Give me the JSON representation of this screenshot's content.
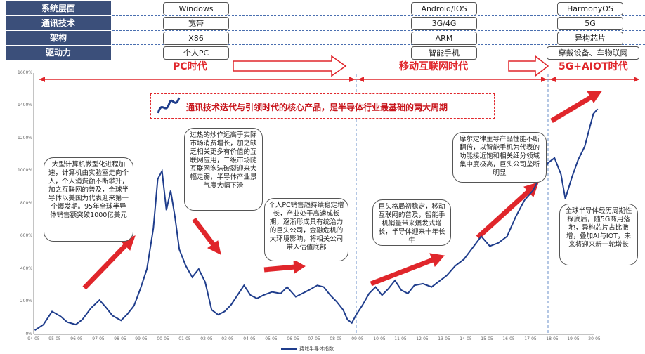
{
  "table": {
    "rows": [
      {
        "label": "系统层面",
        "values": [
          "Windows",
          "Android/IOS",
          "HarmonyOS"
        ]
      },
      {
        "label": "通讯技术",
        "values": [
          "宽带",
          "3G/4G",
          "5G"
        ]
      },
      {
        "label": "架构",
        "values": [
          "X86",
          "ARM",
          "异构芯片"
        ]
      },
      {
        "label": "驱动力",
        "values": [
          "个人PC",
          "智能手机",
          "穿戴设备、车物联网"
        ]
      }
    ]
  },
  "eras": [
    "PC时代",
    "移动互联网时代",
    "5G+AIOT时代"
  ],
  "banner": "通讯技术迭代与引领时代的核心产品，是半导体行业最基础的两大周期",
  "annotations": [
    "大型计算机微型化进程加速，计算机由实验室走向个人，个人消费额不断攀升，加之互联网的普及，全球半导体以美国为代表迎来第一个爆发期。95年全球半导体销售额突破1000亿美元",
    "过热的炒作远高于实际市场消费增长，加之缺乏相关更多有价值的互联网应用，二级市场随互联网泡沫破裂迎来大幅走弱，半导体产业景气度大幅下滑",
    "个人PC销售趋持续稳定增长，产业处于高速成长期，逐渐形成具有统治力的巨头公司，金融危机的大环境影响，将相关公司带入估值底部",
    "巨头格局初稳定，移动互联网的普及，智能手机销量带来爆发式增长，半导体迎来十年长牛",
    "摩尔定律主导产品性能不断翻倍，以智能手机为代表的功能接近饱和相关细分领域集中度极高，巨头公司垄断明显",
    "全球半导体经历周期性探底后，随5G商用落地，异构芯片占比激增，叠加AI与IOT，未来将迎来新一轮增长"
  ],
  "chart_data": {
    "type": "line",
    "title": "",
    "xlabel": "",
    "ylabel": "",
    "ylim": [
      0,
      1600
    ],
    "yticks": [
      "0%",
      "200%",
      "400%",
      "600%",
      "800%",
      "1000%",
      "1200%",
      "1400%",
      "1600%"
    ],
    "xticks": [
      "94-05",
      "95-05",
      "96-05",
      "97-05",
      "98-05",
      "99-05",
      "00-05",
      "01-05",
      "02-05",
      "03-05",
      "04-05",
      "05-05",
      "06-05",
      "07-05",
      "08-05",
      "09-05",
      "10-05",
      "11-05",
      "12-05",
      "13-05",
      "14-05",
      "15-05",
      "16-05",
      "17-05",
      "18-05",
      "19-05",
      "20-05"
    ],
    "legend": "费城半导体指数",
    "legend_position": "bottom",
    "grid": false,
    "series": [
      {
        "name": "费城半导体指数",
        "color": "#1f3d8c",
        "x": [
          1994.4,
          1994.8,
          1995.2,
          1995.6,
          1995.9,
          1996.3,
          1996.6,
          1997.0,
          1997.4,
          1997.7,
          1998.0,
          1998.4,
          1998.7,
          1999.0,
          1999.3,
          1999.6,
          1999.9,
          2000.1,
          2000.3,
          2000.5,
          2000.7,
          2000.9,
          2001.1,
          2001.4,
          2001.7,
          2002.0,
          2002.3,
          2002.6,
          2002.9,
          2003.2,
          2003.5,
          2003.8,
          2004.1,
          2004.4,
          2004.7,
          2005.0,
          2005.4,
          2005.8,
          2006.1,
          2006.5,
          2006.8,
          2007.1,
          2007.5,
          2007.8,
          2008.1,
          2008.4,
          2008.7,
          2008.9,
          2009.1,
          2009.3,
          2009.6,
          2009.9,
          2010.2,
          2010.5,
          2010.8,
          2011.1,
          2011.4,
          2011.7,
          2012.0,
          2012.4,
          2012.8,
          2013.1,
          2013.5,
          2013.9,
          2014.3,
          2014.7,
          2015.1,
          2015.5,
          2015.9,
          2016.3,
          2016.7,
          2017.1,
          2017.5,
          2017.9,
          2018.2,
          2018.5,
          2018.8,
          2019.0,
          2019.3,
          2019.6,
          2019.9,
          2020.1,
          2020.3,
          2020.5
        ],
        "values": [
          25,
          60,
          140,
          110,
          75,
          60,
          90,
          160,
          210,
          165,
          115,
          85,
          125,
          175,
          280,
          400,
          650,
          950,
          1000,
          760,
          880,
          720,
          520,
          420,
          350,
          400,
          320,
          150,
          120,
          140,
          180,
          240,
          300,
          240,
          220,
          240,
          260,
          250,
          290,
          230,
          250,
          270,
          300,
          290,
          240,
          200,
          150,
          90,
          70,
          120,
          180,
          250,
          290,
          240,
          280,
          330,
          270,
          250,
          300,
          310,
          290,
          320,
          360,
          420,
          460,
          530,
          600,
          540,
          560,
          600,
          720,
          820,
          880,
          980,
          1050,
          1080,
          980,
          830,
          960,
          1070,
          1150,
          1250,
          1350,
          1380
        ]
      }
    ]
  }
}
